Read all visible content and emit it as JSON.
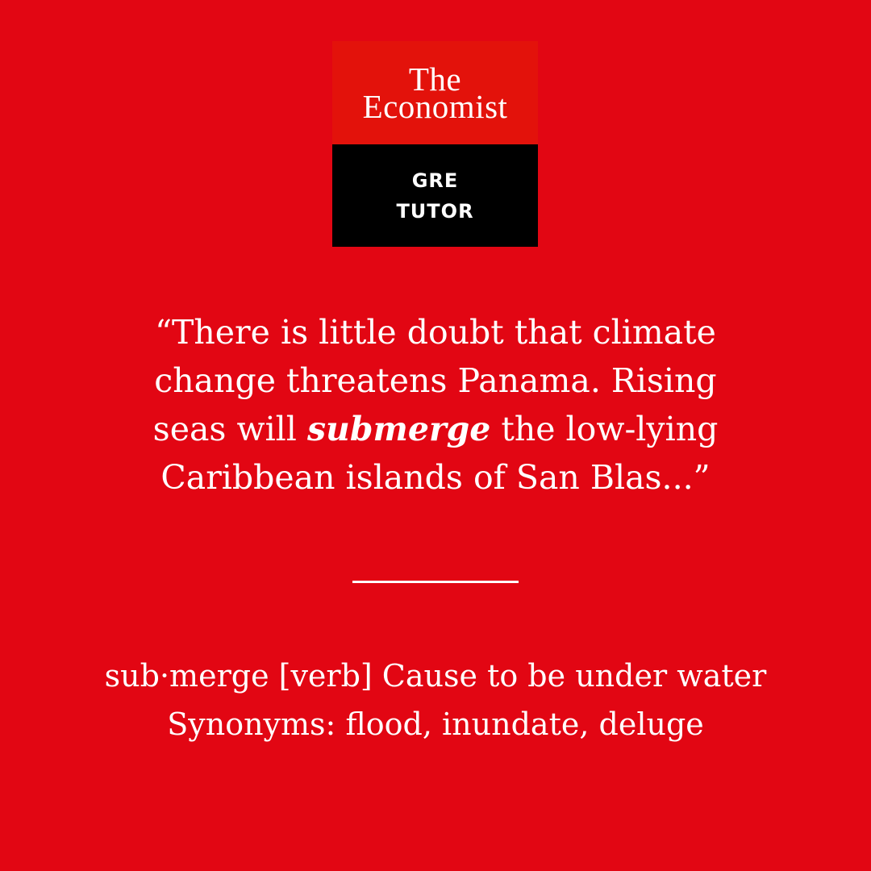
{
  "logo": {
    "title_line1": "The",
    "title_line2": "Economist",
    "sub_line1": "GRE",
    "sub_line2": "TUTOR"
  },
  "quote": {
    "line1": "“There is little doubt that climate",
    "line2": "change threatens Panama. Rising",
    "line3_before": "seas will ",
    "line3_emphasis": "submerge",
    "line3_after": " the low-lying",
    "line4": "Caribbean islands of San Blas...”"
  },
  "definition": {
    "line1": "sub·merge [verb] Cause to be under water",
    "line2": "Synonyms: flood, inundate, deluge"
  },
  "colors": {
    "background": "#e20613",
    "logo_red": "#e3120b",
    "logo_black": "#000000",
    "text": "#ffffff"
  }
}
